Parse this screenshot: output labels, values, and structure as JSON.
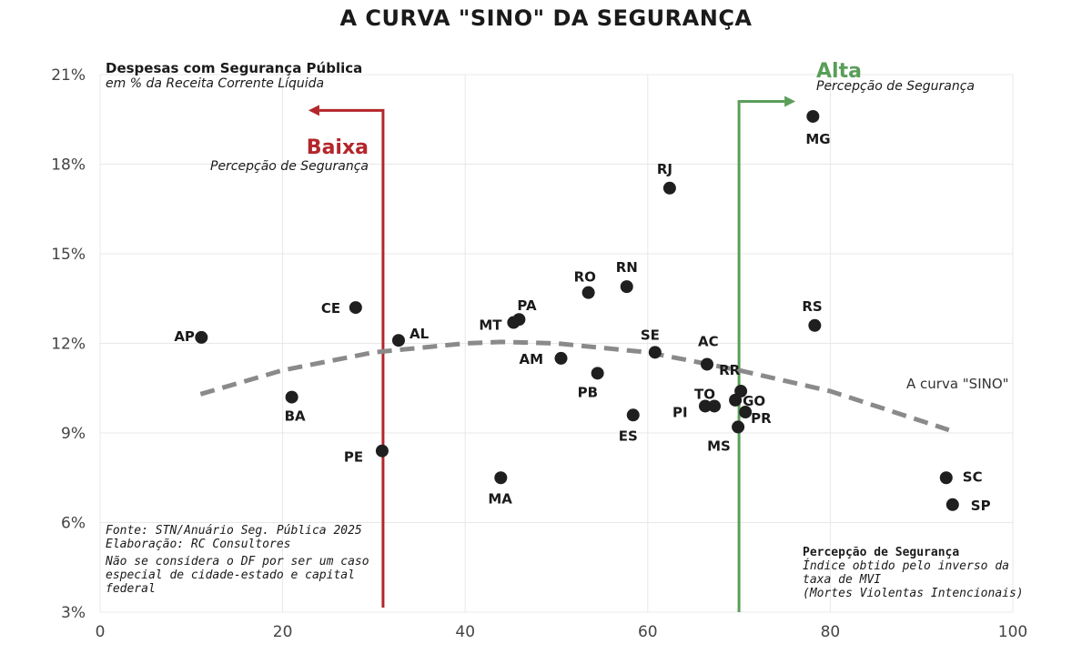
{
  "chart_data": {
    "type": "scatter",
    "title": "A CURVA \"SINO\" DA SEGURANÇA",
    "ylabel": "Despesas com Segurança Pública",
    "ylabel_sub": "em % da Receita Corrente Líquida",
    "xlabel": "Percepção de Segurança",
    "xlabel_sub": [
      "Índice obtido pelo inverso da",
      "taxa de MVI",
      "(Mortes Violentas Intencionais)"
    ],
    "xlim": [
      0,
      100
    ],
    "ylim": [
      3,
      21
    ],
    "xticks": [
      "0",
      "20",
      "40",
      "60",
      "80",
      "100"
    ],
    "yticks": [
      "3%",
      "6%",
      "9%",
      "12%",
      "15%",
      "18%",
      "21%"
    ],
    "grid": true,
    "points": [
      {
        "label": "AP",
        "x": 11.1,
        "y": 12.2
      },
      {
        "label": "BA",
        "x": 21.0,
        "y": 10.2
      },
      {
        "label": "CE",
        "x": 28.0,
        "y": 13.2
      },
      {
        "label": "AL",
        "x": 32.7,
        "y": 12.1
      },
      {
        "label": "PE",
        "x": 30.9,
        "y": 8.4
      },
      {
        "label": "MT",
        "x": 45.3,
        "y": 12.7
      },
      {
        "label": "PA",
        "x": 45.9,
        "y": 12.8
      },
      {
        "label": "AM",
        "x": 50.5,
        "y": 11.5
      },
      {
        "label": "MA",
        "x": 43.9,
        "y": 7.5
      },
      {
        "label": "RO",
        "x": 53.5,
        "y": 13.7
      },
      {
        "label": "RN",
        "x": 57.7,
        "y": 13.9
      },
      {
        "label": "PB",
        "x": 54.5,
        "y": 11.0
      },
      {
        "label": "ES",
        "x": 58.4,
        "y": 9.6
      },
      {
        "label": "SE",
        "x": 60.8,
        "y": 11.7
      },
      {
        "label": "RJ",
        "x": 62.4,
        "y": 17.2
      },
      {
        "label": "AC",
        "x": 66.5,
        "y": 11.3
      },
      {
        "label": "TO",
        "x": 67.3,
        "y": 9.9
      },
      {
        "label": "PI",
        "x": 66.3,
        "y": 9.9
      },
      {
        "label": "RR",
        "x": 70.2,
        "y": 10.4
      },
      {
        "label": "GO",
        "x": 69.6,
        "y": 10.1
      },
      {
        "label": "PR",
        "x": 70.7,
        "y": 9.7
      },
      {
        "label": "MS",
        "x": 69.9,
        "y": 9.2
      },
      {
        "label": "MG",
        "x": 78.1,
        "y": 19.6
      },
      {
        "label": "RS",
        "x": 78.3,
        "y": 12.6
      },
      {
        "label": "SC",
        "x": 92.7,
        "y": 7.5
      },
      {
        "label": "SP",
        "x": 93.4,
        "y": 6.6
      }
    ],
    "trend_curve": {
      "label": "A curva \"SINO\"",
      "x": [
        11,
        20,
        30,
        40,
        44,
        50,
        60,
        70,
        80,
        93
      ],
      "y": [
        10.3,
        11.1,
        11.7,
        12.0,
        12.05,
        12.0,
        11.7,
        11.1,
        10.4,
        9.1
      ]
    },
    "low_marker": {
      "x": 31,
      "label": "Baixa",
      "sub": "Percepção de Segurança",
      "color": "#b3262b"
    },
    "high_marker": {
      "x": 70,
      "label": "Alta",
      "sub": "Percepção de Segurança",
      "color": "#5a9e5a"
    }
  },
  "notes": {
    "source": "Fonte: STN/Anuário Seg. Pública 2025",
    "author": "Elaboração: RC Consultores",
    "caveat": [
      "Não se considera o DF por ser um caso",
      "especial de cidade-estado e capital",
      "federal"
    ]
  }
}
